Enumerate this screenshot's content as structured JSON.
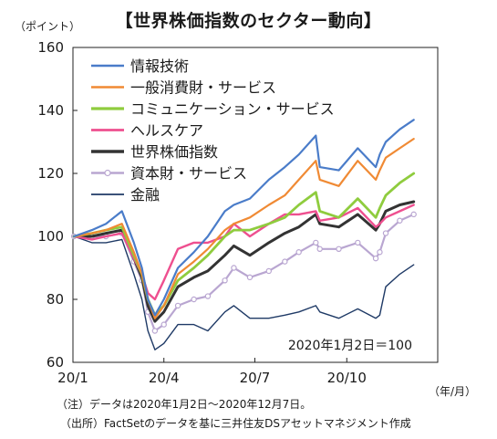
{
  "title": "【世界株価指数のセクター動向】",
  "y_unit": "（ポイント）",
  "x_unit": "（年/月）",
  "base_note": "2020年1月2日＝100",
  "notes": [
    "（注）データは2020年1月2日～2020年12月7日。",
    "（出所）FactSetのデータを基に三井住友DSアセットマネジメント作成"
  ],
  "chart_data": {
    "type": "line",
    "x_ticks": [
      "20/1",
      "20/4",
      "20/7",
      "20/10"
    ],
    "ylim": [
      60,
      160
    ],
    "y_ticks": [
      60,
      80,
      100,
      120,
      140,
      160
    ],
    "legend_position": "top-left",
    "x_dates": [
      "2020-01-02",
      "2020-01-20",
      "2020-02-03",
      "2020-02-19",
      "2020-03-02",
      "2020-03-10",
      "2020-03-16",
      "2020-03-23",
      "2020-04-01",
      "2020-04-15",
      "2020-05-01",
      "2020-05-15",
      "2020-06-01",
      "2020-06-10",
      "2020-06-26",
      "2020-07-15",
      "2020-07-31",
      "2020-08-14",
      "2020-08-31",
      "2020-09-04",
      "2020-09-23",
      "2020-10-12",
      "2020-10-30",
      "2020-11-03",
      "2020-11-09",
      "2020-11-23",
      "2020-12-07"
    ],
    "series": [
      {
        "name": "情報技術",
        "color": "#4a7cc9",
        "width": 2.2,
        "values": [
          100,
          102,
          104,
          108,
          98,
          90,
          80,
          75,
          80,
          90,
          95,
          100,
          108,
          110,
          112,
          118,
          122,
          126,
          132,
          122,
          121,
          128,
          122,
          126,
          130,
          134,
          137
        ]
      },
      {
        "name": "一般消費財・サービス",
        "color": "#f08a34",
        "width": 2.2,
        "values": [
          100,
          101,
          102,
          104,
          95,
          88,
          80,
          74,
          78,
          88,
          92,
          96,
          102,
          104,
          106,
          110,
          113,
          118,
          124,
          118,
          116,
          124,
          118,
          121,
          125,
          128,
          131
        ]
      },
      {
        "name": "コミュニケーション・サービス",
        "color": "#8fcc3e",
        "width": 2.8,
        "values": [
          100,
          101,
          102,
          103,
          94,
          88,
          80,
          75,
          78,
          86,
          90,
          94,
          100,
          102,
          102,
          104,
          106,
          110,
          114,
          108,
          106,
          112,
          106,
          109,
          113,
          117,
          120
        ]
      },
      {
        "name": "ヘルスケア",
        "color": "#ee4f8f",
        "width": 2.4,
        "values": [
          100,
          99,
          100,
          101,
          93,
          88,
          82,
          80,
          86,
          96,
          98,
          98,
          100,
          104,
          100,
          104,
          107,
          107,
          108,
          105,
          106,
          109,
          103,
          104,
          106,
          108,
          110
        ]
      },
      {
        "name": "世界株価指数",
        "color": "#333333",
        "width": 3.0,
        "values": [
          100,
          100,
          101,
          102,
          93,
          87,
          78,
          73,
          76,
          84,
          87,
          89,
          94,
          97,
          94,
          98,
          101,
          103,
          107,
          104,
          103,
          107,
          102,
          104,
          108,
          110,
          111
        ]
      },
      {
        "name": "資本財・サービス",
        "color": "#b9a6d1",
        "width": 2.2,
        "markers": true,
        "values": [
          100,
          100,
          100,
          101,
          92,
          86,
          76,
          70,
          72,
          78,
          80,
          81,
          86,
          90,
          87,
          89,
          92,
          95,
          98,
          96,
          96,
          98,
          93,
          95,
          101,
          105,
          107
        ]
      },
      {
        "name": "金融",
        "color": "#1f3a66",
        "width": 1.4,
        "values": [
          100,
          98,
          98,
          99,
          88,
          80,
          70,
          64,
          66,
          72,
          72,
          70,
          76,
          78,
          74,
          74,
          75,
          76,
          78,
          76,
          74,
          77,
          74,
          75,
          84,
          88,
          91
        ]
      }
    ]
  }
}
